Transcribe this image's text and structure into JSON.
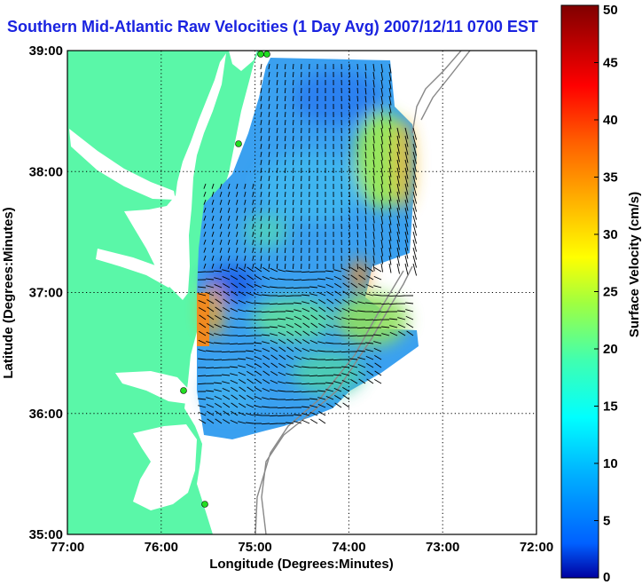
{
  "title": "Southern Mid-Atlantic Raw Velocities (1 Day Avg) 2007/12/11 0700 EST",
  "chart_data": {
    "type": "heatmap",
    "title": "Southern Mid-Atlantic Raw Velocities (1 Day Avg) 2007/12/11 0700 EST",
    "xlabel": "Longitude (Degrees:Minutes)",
    "ylabel": "Latitude (Degrees:Minutes)",
    "xlim": [
      -77,
      -72
    ],
    "ylim": [
      35,
      39
    ],
    "x_ticks": [
      "77:00",
      "76:00",
      "75:00",
      "74:00",
      "73:00",
      "72:00"
    ],
    "y_ticks": [
      "35:00",
      "36:00",
      "37:00",
      "38:00",
      "39:00"
    ],
    "grid": true,
    "colorbar": {
      "label": "Surface Velocity (cm/s)",
      "range": [
        0,
        50
      ],
      "ticks": [
        "0",
        "5",
        "10",
        "15",
        "20",
        "25",
        "30",
        "35",
        "40",
        "45",
        "50"
      ]
    },
    "colors": {
      "land": "#5af7a8",
      "grid": "#000000",
      "title": "#1a23e0",
      "bathymetry": "#888888",
      "sites": "#22dd22"
    }
  }
}
